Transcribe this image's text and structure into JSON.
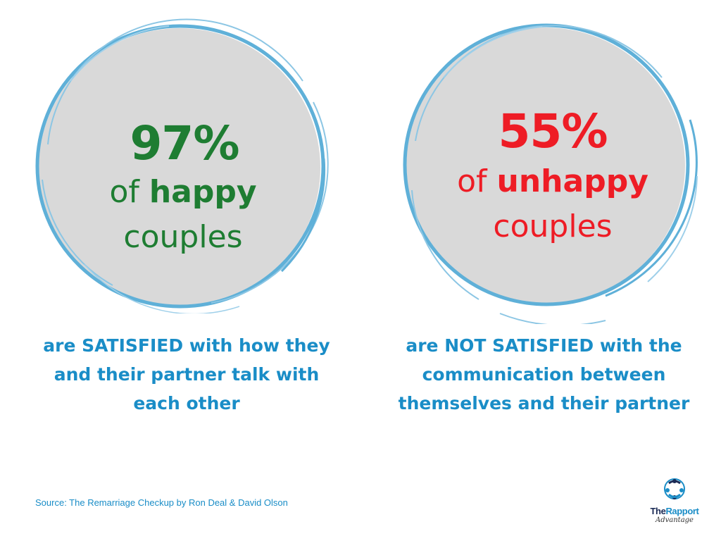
{
  "left_stat": {
    "value": "97%",
    "of_word": "of",
    "group": "happy",
    "noun": "couples",
    "caption": "are SATISFIED with how they and their partner talk with each other",
    "text_color": "#1e7d32"
  },
  "right_stat": {
    "value": "55%",
    "of_word": "of",
    "group": "unhappy",
    "noun": "couples",
    "caption": "are NOT SATISFIED with the communication between themselves and their partner",
    "text_color": "#ee1c25"
  },
  "caption_color": "#1a8dc7",
  "circle_fill": "#d9d9d9",
  "circle_stroke": "#5fb0d8",
  "source": "Source: The Remarriage Checkup by Ron Deal & David Olson",
  "logo": {
    "icon": "people-circle-logo-icon",
    "brand_part1": "The",
    "brand_part2": "Rapport",
    "tagline": "Advantage"
  }
}
